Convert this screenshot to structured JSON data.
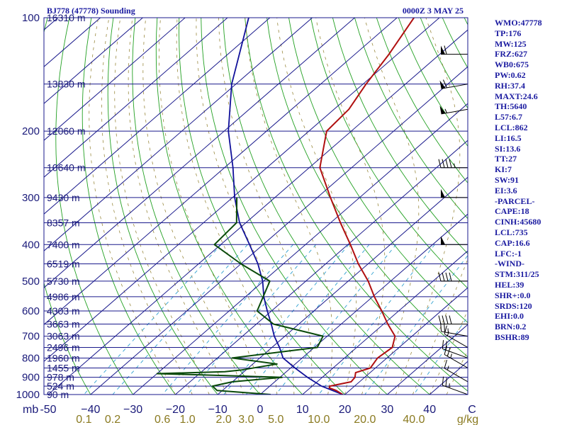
{
  "header": {
    "station": "BJ778 (47778) Sounding",
    "time": "0000Z  3 MAY 25"
  },
  "colors": {
    "grid": "#1a1a8c",
    "temperature": "#b01010",
    "dewpoint": "#0a4a0a",
    "parcel": "#10109a",
    "dry_adiabat": "#22a022",
    "moist_adiabat": "#9a8a40",
    "mixing_ratio": "#2fa0d0",
    "wind": "#000000"
  },
  "chart_data": {
    "type": "skew-t",
    "pressure_levels": [
      100,
      200,
      300,
      400,
      500,
      600,
      700,
      800,
      900,
      1000
    ],
    "pressure_level_labels": [
      "100",
      "200",
      "300",
      "400",
      "500",
      "600",
      "700",
      "800",
      "900",
      "1000"
    ],
    "pressure_unit_label": "mb",
    "plim": [
      1000,
      100
    ],
    "xlim": [
      -50,
      50
    ],
    "temperature_ticks": [
      -50,
      -40,
      -30,
      -20,
      -10,
      0,
      10,
      20,
      30,
      40,
      50
    ],
    "temperature_tick_labels": [
      "-50",
      "−40",
      "−30",
      "−20",
      "−10",
      "0",
      "10",
      "20",
      "30",
      "40",
      "C"
    ],
    "mixing_ratio_ticks": [
      0.1,
      0.2,
      0.6,
      1.0,
      2.0,
      3.0,
      5.0,
      10.0,
      20.0,
      40.0
    ],
    "mixing_ratio_tick_labels": [
      "0.1",
      "0.2",
      "0.6",
      "1.0",
      "2.0",
      "3.0",
      "5.0",
      "10.0",
      "20.0",
      "40.0"
    ],
    "mixing_ratio_unit_label": "g/kg",
    "height_labels": [
      {
        "p": 100,
        "label": "16310 m"
      },
      {
        "p": 150,
        "label": "13830 m"
      },
      {
        "p": 200,
        "label": "12060 m"
      },
      {
        "p": 250,
        "label": "10640 m"
      },
      {
        "p": 300,
        "label": "9430 m"
      },
      {
        "p": 350,
        "label": "8357 m"
      },
      {
        "p": 400,
        "label": "7400 m"
      },
      {
        "p": 450,
        "label": "6519 m"
      },
      {
        "p": 500,
        "label": "5730 m"
      },
      {
        "p": 550,
        "label": "4986 m"
      },
      {
        "p": 600,
        "label": "4303 m"
      },
      {
        "p": 650,
        "label": "3663 m"
      },
      {
        "p": 700,
        "label": "3063 m"
      },
      {
        "p": 750,
        "label": "2496 m"
      },
      {
        "p": 800,
        "label": "1960 m"
      },
      {
        "p": 850,
        "label": "1455 m"
      },
      {
        "p": 900,
        "label": "978 m"
      },
      {
        "p": 950,
        "label": "524 m"
      },
      {
        "p": 1000,
        "label": "90 m"
      }
    ],
    "temperature": [
      {
        "p": 1000,
        "t": 19.5
      },
      {
        "p": 975,
        "t": 16.8
      },
      {
        "p": 960,
        "t": 14.5
      },
      {
        "p": 950,
        "t": 14.2
      },
      {
        "p": 925,
        "t": 18.0
      },
      {
        "p": 900,
        "t": 17.7
      },
      {
        "p": 875,
        "t": 16.6
      },
      {
        "p": 850,
        "t": 18.8
      },
      {
        "p": 800,
        "t": 17.8
      },
      {
        "p": 750,
        "t": 18.4
      },
      {
        "p": 700,
        "t": 16.0
      },
      {
        "p": 650,
        "t": 11.0
      },
      {
        "p": 600,
        "t": 6.0
      },
      {
        "p": 550,
        "t": 0.4
      },
      {
        "p": 500,
        "t": -5.3
      },
      {
        "p": 450,
        "t": -12.3
      },
      {
        "p": 400,
        "t": -19.4
      },
      {
        "p": 350,
        "t": -27.7
      },
      {
        "p": 300,
        "t": -36.9
      },
      {
        "p": 250,
        "t": -47.5
      },
      {
        "p": 200,
        "t": -55.8
      },
      {
        "p": 175,
        "t": -56.5
      },
      {
        "p": 150,
        "t": -59.3
      },
      {
        "p": 125,
        "t": -62.0
      },
      {
        "p": 100,
        "t": -66.0
      }
    ],
    "dewpoint": [
      {
        "p": 1000,
        "t": 2.5
      },
      {
        "p": 975,
        "t": -11.3
      },
      {
        "p": 950,
        "t": -13.5
      },
      {
        "p": 925,
        "t": -10.0
      },
      {
        "p": 900,
        "t": 0.5
      },
      {
        "p": 890,
        "t": -14.0
      },
      {
        "p": 880,
        "t": -30.0
      },
      {
        "p": 870,
        "t": -14.5
      },
      {
        "p": 860,
        "t": -11.0
      },
      {
        "p": 830,
        "t": -4.3
      },
      {
        "p": 800,
        "t": -16.5
      },
      {
        "p": 750,
        "t": 0.7
      },
      {
        "p": 700,
        "t": -1.0
      },
      {
        "p": 650,
        "t": -16.0
      },
      {
        "p": 600,
        "t": -23.4
      },
      {
        "p": 500,
        "t": -28.5
      },
      {
        "p": 450,
        "t": -40.0
      },
      {
        "p": 400,
        "t": -51.5
      },
      {
        "p": 350,
        "t": -52.2
      },
      {
        "p": 300,
        "t": -59.0
      }
    ],
    "parcel": [
      {
        "p": 1000,
        "t": 19.5
      },
      {
        "p": 950,
        "t": 12.2
      },
      {
        "p": 900,
        "t": 6.5
      },
      {
        "p": 850,
        "t": 1.0
      },
      {
        "p": 800,
        "t": -4.5
      },
      {
        "p": 750,
        "t": -8.2
      },
      {
        "p": 700,
        "t": -12.5
      },
      {
        "p": 650,
        "t": -16.5
      },
      {
        "p": 600,
        "t": -21.0
      },
      {
        "p": 550,
        "t": -25.7
      },
      {
        "p": 500,
        "t": -30.2
      },
      {
        "p": 450,
        "t": -36.0
      },
      {
        "p": 400,
        "t": -43.2
      },
      {
        "p": 350,
        "t": -51.5
      },
      {
        "p": 300,
        "t": -59.5
      },
      {
        "p": 250,
        "t": -68.0
      },
      {
        "p": 200,
        "t": -79.0
      },
      {
        "p": 150,
        "t": -91.0
      },
      {
        "p": 100,
        "t": -105.0
      }
    ],
    "wind_barbs": [
      {
        "p": 1000,
        "dir": 290,
        "spd": 25
      },
      {
        "p": 925,
        "dir": 300,
        "spd": 15
      },
      {
        "p": 850,
        "dir": 300,
        "spd": 25
      },
      {
        "p": 800,
        "dir": 290,
        "spd": 20
      },
      {
        "p": 750,
        "dir": 300,
        "spd": 15
      },
      {
        "p": 700,
        "dir": 280,
        "spd": 25
      },
      {
        "p": 650,
        "dir": 270,
        "spd": 40
      },
      {
        "p": 500,
        "dir": 270,
        "spd": 40
      },
      {
        "p": 400,
        "dir": 270,
        "spd": 50
      },
      {
        "p": 300,
        "dir": 270,
        "spd": 50
      },
      {
        "p": 250,
        "dir": 270,
        "spd": 45
      },
      {
        "p": 175,
        "dir": 260,
        "spd": 55
      },
      {
        "p": 150,
        "dir": 260,
        "spd": 60
      },
      {
        "p": 125,
        "dir": 270,
        "spd": 60
      }
    ]
  },
  "indices": [
    "WMO:47778",
    "TP:176",
    "MW:125",
    "FRZ:627",
    "WB0:675",
    "PW:0.62",
    "RH:37.4",
    "MAXT:24.6",
    "TH:5640",
    "L57:6.7",
    "LCL:862",
    "LI:16.5",
    "SI:13.6",
    "TT:27",
    "KI:7",
    "SW:91",
    "EI:3.6",
    "-PARCEL-",
    "CAPE:18",
    "CINH:45680",
    "LCL:735",
    "CAP:16.6",
    "LFC:-1",
    "-WIND-",
    "STM:311/25",
    "HEL:39",
    "SHR+:0.0",
    "SRDS:120",
    "EHI:0.0",
    "BRN:0.2",
    "BSHR:89"
  ]
}
